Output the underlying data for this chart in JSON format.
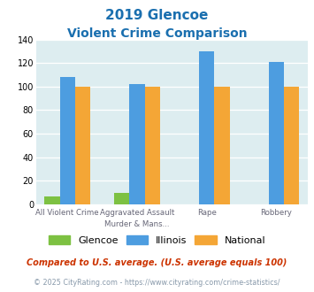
{
  "title_line1": "2019 Glencoe",
  "title_line2": "Violent Crime Comparison",
  "cat_labels_top": [
    "",
    "Aggravated Assault",
    "",
    ""
  ],
  "cat_labels_bot": [
    "All Violent Crime",
    "Murder & Mans...",
    "Rape",
    "Robbery"
  ],
  "glencoe": [
    7,
    10,
    0,
    0
  ],
  "illinois": [
    108,
    102,
    130,
    121
  ],
  "national": [
    100,
    100,
    100,
    100
  ],
  "color_glencoe": "#7dc142",
  "color_illinois": "#4d9de0",
  "color_national": "#f4a636",
  "color_bg": "#ddedf0",
  "color_title": "#1a6faf",
  "ylim": [
    0,
    140
  ],
  "yticks": [
    0,
    20,
    40,
    60,
    80,
    100,
    120,
    140
  ],
  "footnote1": "Compared to U.S. average. (U.S. average equals 100)",
  "footnote2": "© 2025 CityRating.com - https://www.cityrating.com/crime-statistics/",
  "footnote1_color": "#cc3300",
  "footnote2_color": "#8899aa"
}
